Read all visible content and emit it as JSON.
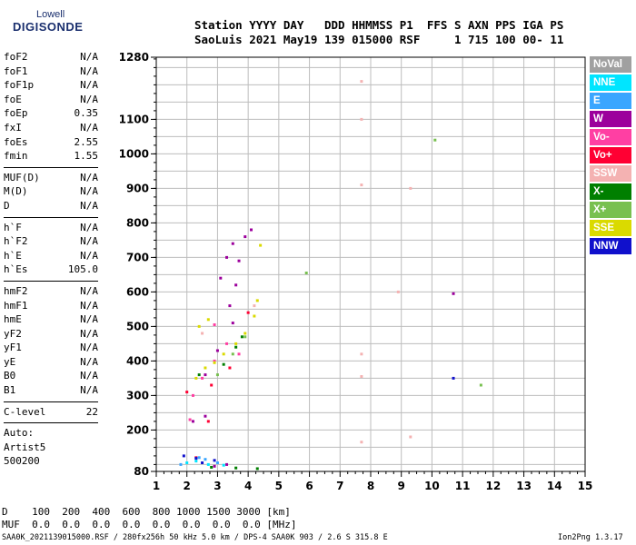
{
  "logo": {
    "line1": "Lowell",
    "line2": "DIGISONDE"
  },
  "header": {
    "line1": "Station YYYY DAY   DDD HHMMSS P1  FFS S AXN PPS IGA PS",
    "line2": "SaoLuis 2021 May19 139 015000 RSF     1 715 100 00- 11"
  },
  "params": {
    "group1": [
      {
        "name": "foF2",
        "value": "N/A"
      },
      {
        "name": "foF1",
        "value": "N/A"
      },
      {
        "name": "foF1p",
        "value": "N/A"
      },
      {
        "name": "foE",
        "value": "N/A"
      },
      {
        "name": "foEp",
        "value": "0.35"
      },
      {
        "name": "fxI",
        "value": "N/A"
      },
      {
        "name": "foEs",
        "value": "2.55"
      },
      {
        "name": "fmin",
        "value": "1.55"
      }
    ],
    "group2": [
      {
        "name": "MUF(D)",
        "value": "N/A"
      },
      {
        "name": "M(D)",
        "value": "N/A"
      },
      {
        "name": "D",
        "value": "N/A"
      }
    ],
    "group3": [
      {
        "name": "h`F",
        "value": "N/A"
      },
      {
        "name": "h`F2",
        "value": "N/A"
      },
      {
        "name": "h`E",
        "value": "N/A"
      },
      {
        "name": "h`Es",
        "value": "105.0"
      }
    ],
    "group4": [
      {
        "name": "hmF2",
        "value": "N/A"
      },
      {
        "name": "hmF1",
        "value": "N/A"
      },
      {
        "name": "hmE",
        "value": "N/A"
      },
      {
        "name": "yF2",
        "value": "N/A"
      },
      {
        "name": "yF1",
        "value": "N/A"
      },
      {
        "name": "yE",
        "value": "N/A"
      },
      {
        "name": "B0",
        "value": "N/A"
      },
      {
        "name": "B1",
        "value": "N/A"
      }
    ],
    "clevel": {
      "name": "C-level",
      "value": "22"
    }
  },
  "auto": {
    "l1": "Auto:",
    "l2": "Artist5",
    "l3": "500200"
  },
  "legend": [
    {
      "label": "NoVal",
      "color": "#a0a0a0"
    },
    {
      "label": "NNE",
      "color": "#00e5ff"
    },
    {
      "label": "E",
      "color": "#3aa6ff"
    },
    {
      "label": "W",
      "color": "#9c009c"
    },
    {
      "label": "Vo-",
      "color": "#ff3fa3"
    },
    {
      "label": "Vo+",
      "color": "#ff0033"
    },
    {
      "label": "SSW",
      "color": "#f4b2b2"
    },
    {
      "label": "X-",
      "color": "#007f00"
    },
    {
      "label": "X+",
      "color": "#78c050"
    },
    {
      "label": "SSE",
      "color": "#dada00"
    },
    {
      "label": "NNW",
      "color": "#1010cc"
    }
  ],
  "bottom": {
    "d_line": "D    100  200  400  600  800 1000 1500 3000 [km]",
    "muf_line": "MUF  0.0  0.0  0.0  0.0  0.0  0.0  0.0  0.0 [MHz]"
  },
  "footer": {
    "left": "SAA0K_2021139015000.RSF / 280fx256h 50 kHz 5.0 km / DPS-4 SAA0K 903 / 2.6 S 315.8 E",
    "right": "Ion2Png 1.3.17"
  },
  "chart_data": {
    "type": "scatter",
    "xlim": [
      1,
      15
    ],
    "ylim": [
      80,
      1280
    ],
    "x_ticks": [
      1,
      2,
      3,
      4,
      5,
      6,
      7,
      8,
      9,
      10,
      11,
      12,
      13,
      14,
      15
    ],
    "y_ticks": [
      80,
      200,
      300,
      400,
      500,
      600,
      700,
      800,
      900,
      1000,
      1100,
      1280
    ],
    "grid": true,
    "series": [
      {
        "name": "W",
        "color": "#9c009c",
        "points": [
          [
            2.2,
            225
          ],
          [
            2.6,
            240
          ],
          [
            2.9,
            95
          ],
          [
            3.3,
            100
          ],
          [
            3.1,
            640
          ],
          [
            3.3,
            700
          ],
          [
            3.5,
            740
          ],
          [
            3.7,
            690
          ],
          [
            3.9,
            760
          ],
          [
            4.1,
            780
          ],
          [
            3.4,
            560
          ],
          [
            3.6,
            620
          ],
          [
            2.6,
            360
          ],
          [
            3.0,
            430
          ],
          [
            10.7,
            595
          ],
          [
            3.5,
            510
          ]
        ]
      },
      {
        "name": "NNE",
        "color": "#00e5ff",
        "points": [
          [
            2.0,
            105
          ],
          [
            2.3,
            110
          ],
          [
            2.7,
            100
          ],
          [
            3.2,
            98
          ]
        ]
      },
      {
        "name": "E",
        "color": "#3aa6ff",
        "points": [
          [
            1.8,
            100
          ],
          [
            2.4,
            120
          ],
          [
            3.0,
            105
          ],
          [
            2.6,
            115
          ]
        ]
      },
      {
        "name": "Vo-",
        "color": "#ff3fa3",
        "points": [
          [
            2.5,
            350
          ],
          [
            2.9,
            400
          ],
          [
            3.3,
            450
          ],
          [
            2.2,
            300
          ],
          [
            3.7,
            420
          ],
          [
            2.1,
            230
          ],
          [
            2.9,
            505
          ]
        ]
      },
      {
        "name": "Vo+",
        "color": "#ff0033",
        "points": [
          [
            2.3,
            120
          ],
          [
            2.8,
            330
          ],
          [
            3.4,
            380
          ],
          [
            2.0,
            310
          ],
          [
            4.0,
            540
          ],
          [
            2.7,
            225
          ]
        ]
      },
      {
        "name": "SSW",
        "color": "#f4b2b2",
        "points": [
          [
            7.7,
            1210
          ],
          [
            7.7,
            1100
          ],
          [
            7.7,
            910
          ],
          [
            8.9,
            600
          ],
          [
            7.7,
            420
          ],
          [
            7.7,
            355
          ],
          [
            7.7,
            165
          ],
          [
            9.3,
            180
          ],
          [
            9.3,
            900
          ],
          [
            2.5,
            480
          ],
          [
            4.2,
            560
          ]
        ]
      },
      {
        "name": "X-",
        "color": "#007f00",
        "points": [
          [
            2.8,
            92
          ],
          [
            3.6,
            90
          ],
          [
            4.3,
            88
          ],
          [
            3.2,
            390
          ],
          [
            3.6,
            440
          ],
          [
            2.4,
            360
          ],
          [
            3.8,
            470
          ]
        ]
      },
      {
        "name": "X+",
        "color": "#78c050",
        "points": [
          [
            3.0,
            360
          ],
          [
            3.5,
            420
          ],
          [
            3.9,
            470
          ],
          [
            11.6,
            330
          ],
          [
            10.1,
            1040
          ],
          [
            5.9,
            655
          ]
        ]
      },
      {
        "name": "SSE",
        "color": "#dada00",
        "points": [
          [
            2.3,
            350
          ],
          [
            2.6,
            380
          ],
          [
            2.9,
            395
          ],
          [
            3.2,
            420
          ],
          [
            3.6,
            450
          ],
          [
            3.9,
            480
          ],
          [
            4.2,
            530
          ],
          [
            4.3,
            575
          ],
          [
            2.4,
            500
          ],
          [
            2.7,
            520
          ],
          [
            4.4,
            735
          ]
        ]
      },
      {
        "name": "NNW",
        "color": "#1010cc",
        "points": [
          [
            1.9,
            125
          ],
          [
            2.3,
            118
          ],
          [
            2.9,
            112
          ],
          [
            10.7,
            350
          ],
          [
            2.5,
            105
          ]
        ]
      }
    ]
  }
}
